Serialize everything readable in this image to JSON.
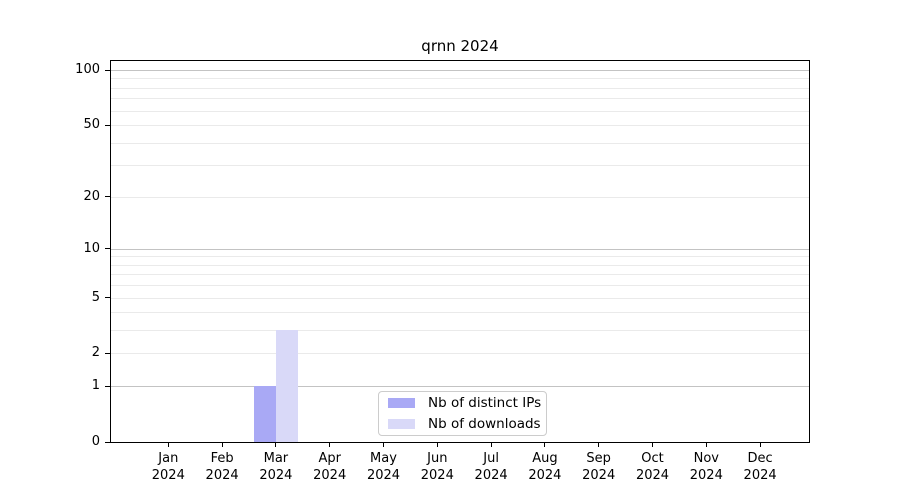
{
  "chart_data": {
    "type": "bar",
    "title": "qrnn 2024",
    "categories": [
      "Jan 2024",
      "Feb 2024",
      "Mar 2024",
      "Apr 2024",
      "May 2024",
      "Jun 2024",
      "Jul 2024",
      "Aug 2024",
      "Sep 2024",
      "Oct 2024",
      "Nov 2024",
      "Dec 2024"
    ],
    "series": [
      {
        "name": "Nb of distinct IPs",
        "color": "#a9a9f5",
        "values": [
          0,
          0,
          1,
          0,
          0,
          0,
          0,
          0,
          0,
          0,
          0,
          0
        ]
      },
      {
        "name": "Nb of downloads",
        "color": "#d9d9f8",
        "values": [
          0,
          0,
          3,
          0,
          0,
          0,
          0,
          0,
          0,
          0,
          0,
          0
        ]
      }
    ],
    "yscale": "log1p",
    "ylim": [
      0,
      113
    ],
    "yticks": [
      0,
      1,
      2,
      5,
      10,
      20,
      50,
      100
    ],
    "gridlines": {
      "major": [
        1,
        10,
        100
      ],
      "minor": [
        2,
        3,
        4,
        5,
        6,
        7,
        8,
        9,
        20,
        30,
        40,
        50,
        60,
        70,
        80,
        90
      ],
      "major_color": "#c3c3c3",
      "minor_color": "#eaeaea"
    },
    "axis_color": "#000000",
    "legend_position": "lower center",
    "grid": true
  }
}
